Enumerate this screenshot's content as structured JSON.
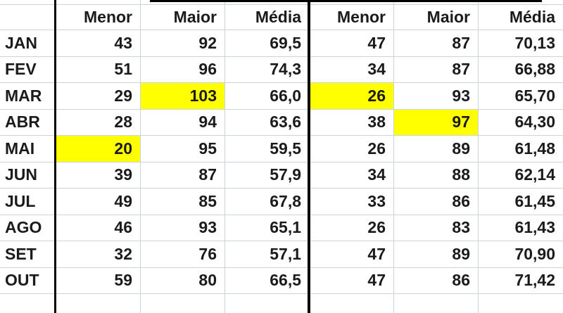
{
  "table": {
    "column_headers": [
      "Menor",
      "Maior",
      "Média",
      "Menor",
      "Maior",
      "Média"
    ],
    "rows": [
      {
        "month": "JAN",
        "values": [
          "43",
          "92",
          "69,5",
          "47",
          "87",
          "70,13"
        ],
        "highlight": []
      },
      {
        "month": "FEV",
        "values": [
          "51",
          "96",
          "74,3",
          "34",
          "87",
          "66,88"
        ],
        "highlight": []
      },
      {
        "month": "MAR",
        "values": [
          "29",
          "103",
          "66,0",
          "26",
          "93",
          "65,70"
        ],
        "highlight": [
          1,
          3
        ]
      },
      {
        "month": "ABR",
        "values": [
          "28",
          "94",
          "63,6",
          "38",
          "97",
          "64,30"
        ],
        "highlight": [
          4
        ]
      },
      {
        "month": "MAI",
        "values": [
          "20",
          "95",
          "59,5",
          "26",
          "89",
          "61,48"
        ],
        "highlight": [
          0
        ]
      },
      {
        "month": "JUN",
        "values": [
          "39",
          "87",
          "57,9",
          "34",
          "88",
          "62,14"
        ],
        "highlight": []
      },
      {
        "month": "JUL",
        "values": [
          "49",
          "85",
          "67,8",
          "33",
          "86",
          "61,45"
        ],
        "highlight": []
      },
      {
        "month": "AGO",
        "values": [
          "46",
          "93",
          "65,1",
          "26",
          "83",
          "61,43"
        ],
        "highlight": []
      },
      {
        "month": "SET",
        "values": [
          "32",
          "76",
          "57,1",
          "47",
          "89",
          "70,90"
        ],
        "highlight": []
      },
      {
        "month": "OUT",
        "values": [
          "59",
          "80",
          "66,5",
          "47",
          "86",
          "71,42"
        ],
        "highlight": []
      }
    ],
    "colors": {
      "highlight": "#ffff00",
      "gridline": "#ccd3df",
      "divider": "#000000",
      "text": "#1b1b1b"
    }
  }
}
